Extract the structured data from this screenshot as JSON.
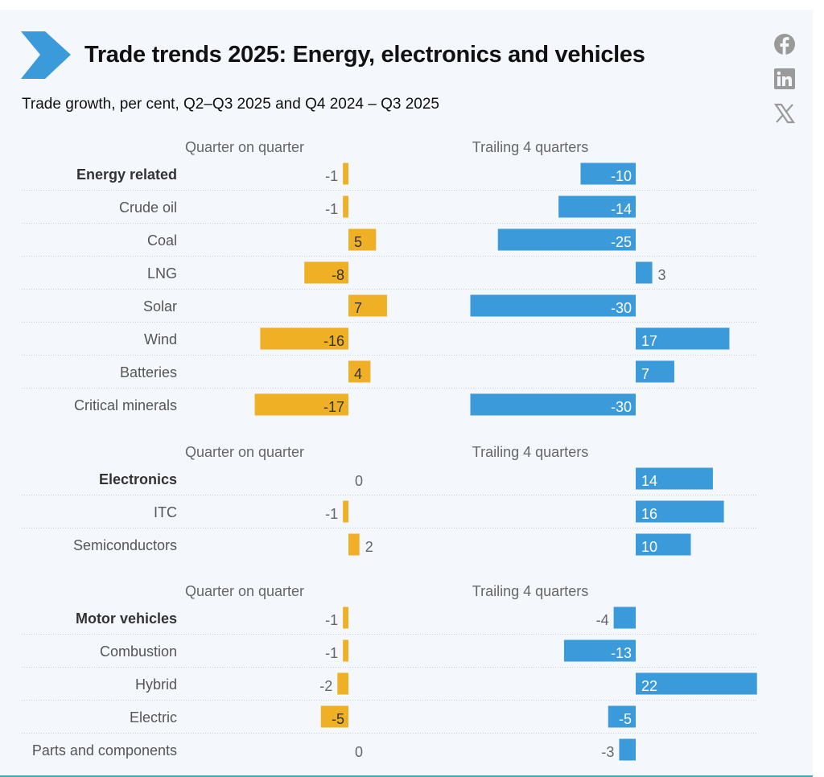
{
  "header": {
    "title": "Trade trends 2025: Energy, electronics and vehicles",
    "subtitle": "Trade growth, per cent, Q2–Q3 2025 and Q4 2024 – Q3 2025",
    "logo_icon": "chevron-right-icon",
    "social": [
      "facebook-icon",
      "linkedin-icon",
      "x-icon"
    ]
  },
  "colors": {
    "qoq": "#f0b026",
    "trailing": "#3b9ad9",
    "chevron": "#3b9ad9",
    "social": "#9a9a9a"
  },
  "chart_data": {
    "type": "bar",
    "orientation": "horizontal",
    "grid": false,
    "series_headers": [
      "Quarter on quarter",
      "Trailing 4 quarters"
    ],
    "sections": [
      {
        "title": "Energy related",
        "categories": [
          "Energy related",
          "Crude oil",
          "Coal",
          "LNG",
          "Solar",
          "Wind",
          "Batteries",
          "Critical minerals"
        ],
        "qoq": [
          -1,
          -1,
          5,
          -8,
          7,
          -16,
          4,
          -17
        ],
        "trailing": [
          -10,
          -14,
          -25,
          3,
          -30,
          17,
          7,
          -30
        ]
      },
      {
        "title": "Electronics",
        "categories": [
          "Electronics",
          "ITC",
          "Semiconductors"
        ],
        "qoq": [
          0,
          -1,
          2
        ],
        "trailing": [
          14,
          16,
          10
        ]
      },
      {
        "title": "Motor vehicles",
        "categories": [
          "Motor vehicles",
          "Combustion",
          "Hybrid",
          "Electric",
          "Parts and components"
        ],
        "qoq": [
          -1,
          -1,
          -2,
          -5,
          0
        ],
        "trailing": [
          -4,
          -13,
          22,
          -5,
          -3
        ]
      }
    ]
  }
}
